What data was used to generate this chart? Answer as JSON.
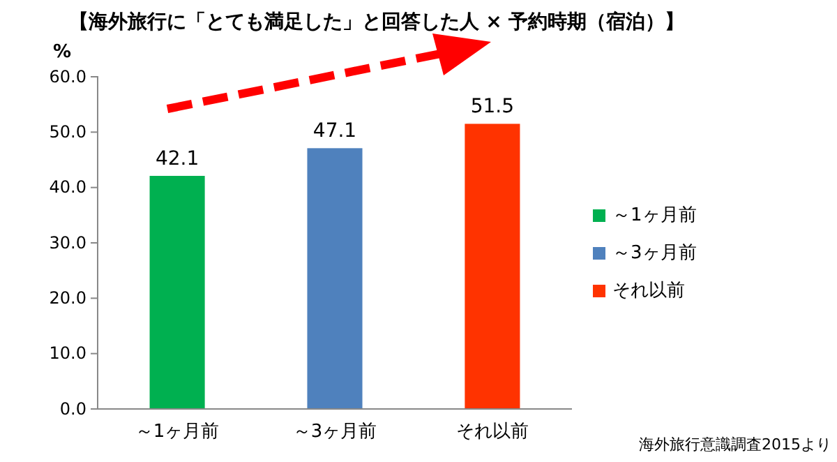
{
  "chart_data": {
    "type": "bar",
    "title": "【海外旅行に「とても満足した」と回答した人 × 予約時期（宿泊）】",
    "ylabel": "%",
    "categories": [
      "～1ヶ月前",
      "～3ヶ月前",
      "それ以前"
    ],
    "series": [
      {
        "name": "～1ヶ月前",
        "color": "#00b050",
        "values": [
          42.1,
          null,
          null
        ]
      },
      {
        "name": "～3ヶ月前",
        "color": "#4f81bd",
        "values": [
          null,
          47.1,
          null
        ]
      },
      {
        "name": "それ以前",
        "color": "#ff3300",
        "values": [
          null,
          null,
          51.5
        ]
      }
    ],
    "ylim": [
      0,
      60
    ],
    "yticks": [
      {
        "value": 0,
        "label": "0.0"
      },
      {
        "value": 10,
        "label": "10.0"
      },
      {
        "value": 20,
        "label": "20.0"
      },
      {
        "value": 30,
        "label": "30.0"
      },
      {
        "value": 40,
        "label": "40.0"
      },
      {
        "value": 50,
        "label": "50.0"
      },
      {
        "value": 60,
        "label": "60.0"
      }
    ],
    "data_labels": true,
    "legend": "right",
    "grid": false,
    "annotations": [
      "海外旅行意識調査2015より"
    ]
  }
}
